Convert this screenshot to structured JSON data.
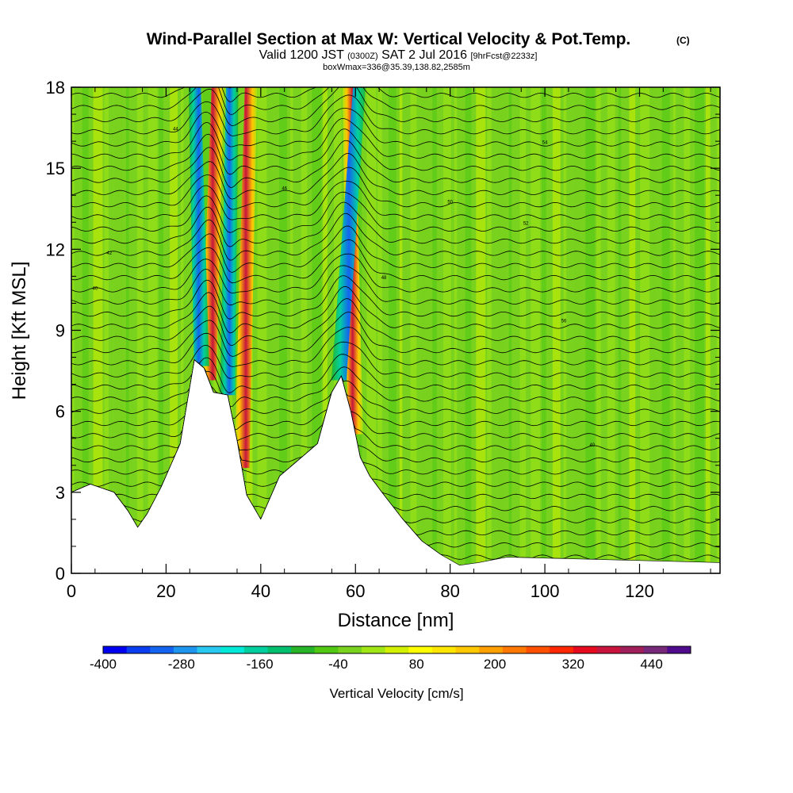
{
  "title": {
    "main": "Wind-Parallel Section at Max W: Vertical Velocity & Pot.Temp.",
    "copyright": "(C)",
    "valid_prefix": "Valid 1200 JST",
    "valid_utc": "(0300Z)",
    "valid_date": "SAT 2 Jul 2016",
    "forecast": "[9hrFcst@2233z]",
    "box_info": "boxWmax=336@35.39,138.82,2585m"
  },
  "chart_data": {
    "type": "heatmap",
    "xlabel": "Distance [nm]",
    "ylabel": "Height [Kft MSL]",
    "xlim": [
      0,
      137
    ],
    "ylim": [
      0,
      18
    ],
    "x_ticks": [
      0,
      20,
      40,
      60,
      80,
      100,
      120
    ],
    "y_ticks": [
      0,
      3,
      6,
      9,
      12,
      15,
      18
    ],
    "terrain_kft": [
      [
        0,
        3.0
      ],
      [
        4,
        3.3
      ],
      [
        9,
        3.0
      ],
      [
        12,
        2.3
      ],
      [
        14,
        1.7
      ],
      [
        16,
        2.2
      ],
      [
        19,
        3.2
      ],
      [
        23,
        4.8
      ],
      [
        26,
        7.9
      ],
      [
        28,
        7.6
      ],
      [
        30,
        6.7
      ],
      [
        33,
        6.6
      ],
      [
        35,
        4.9
      ],
      [
        37,
        2.9
      ],
      [
        40,
        2.0
      ],
      [
        42,
        2.8
      ],
      [
        44,
        3.6
      ],
      [
        46,
        3.9
      ],
      [
        48,
        4.2
      ],
      [
        52,
        4.8
      ],
      [
        55,
        6.7
      ],
      [
        57,
        7.3
      ],
      [
        59,
        6.0
      ],
      [
        61,
        4.3
      ],
      [
        63,
        3.6
      ],
      [
        66,
        2.9
      ],
      [
        70,
        2.0
      ],
      [
        74,
        1.2
      ],
      [
        78,
        0.7
      ],
      [
        82,
        0.3
      ],
      [
        86,
        0.4
      ],
      [
        92,
        0.6
      ],
      [
        137,
        0.4
      ]
    ],
    "updrafts_cm_s": [
      {
        "x_base": 29.0,
        "x_top": 31.0,
        "peak": 380
      },
      {
        "x_base": 36.0,
        "x_top": 38.0,
        "peak": 220
      },
      {
        "x_base": 60.0,
        "x_top": 58.5,
        "peak": 336
      }
    ],
    "downdrafts_cm_s": [
      {
        "x_base": 27.5,
        "x_top": 26.0,
        "peak": -300
      },
      {
        "x_base": 33.0,
        "x_top": 34.0,
        "peak": -170
      },
      {
        "x_base": 56.5,
        "x_top": 61.0,
        "peak": -280
      }
    ],
    "pot_temp_contour_labels": [
      "40",
      "42",
      "44",
      "46",
      "48",
      "50",
      "52",
      "54",
      "56"
    ],
    "colorbar": {
      "label": "Vertical Velocity [cm/s]",
      "range": [
        -400,
        500
      ],
      "step": 40,
      "tick_labels": [
        "-400",
        "-280",
        "-160",
        "-40",
        "80",
        "200",
        "320",
        "440"
      ],
      "colors": [
        "#0000f0",
        "#0a3cf0",
        "#1464f0",
        "#1e96f0",
        "#28c8f0",
        "#00e8d8",
        "#00d0a0",
        "#00c070",
        "#28b428",
        "#50c814",
        "#78d21e",
        "#a0e614",
        "#d2f000",
        "#ffff00",
        "#ffe600",
        "#ffc800",
        "#ffa000",
        "#ff7800",
        "#ff5000",
        "#ff2800",
        "#e60a1e",
        "#c8143c",
        "#a01e5a",
        "#782878",
        "#500a8c"
      ]
    }
  }
}
